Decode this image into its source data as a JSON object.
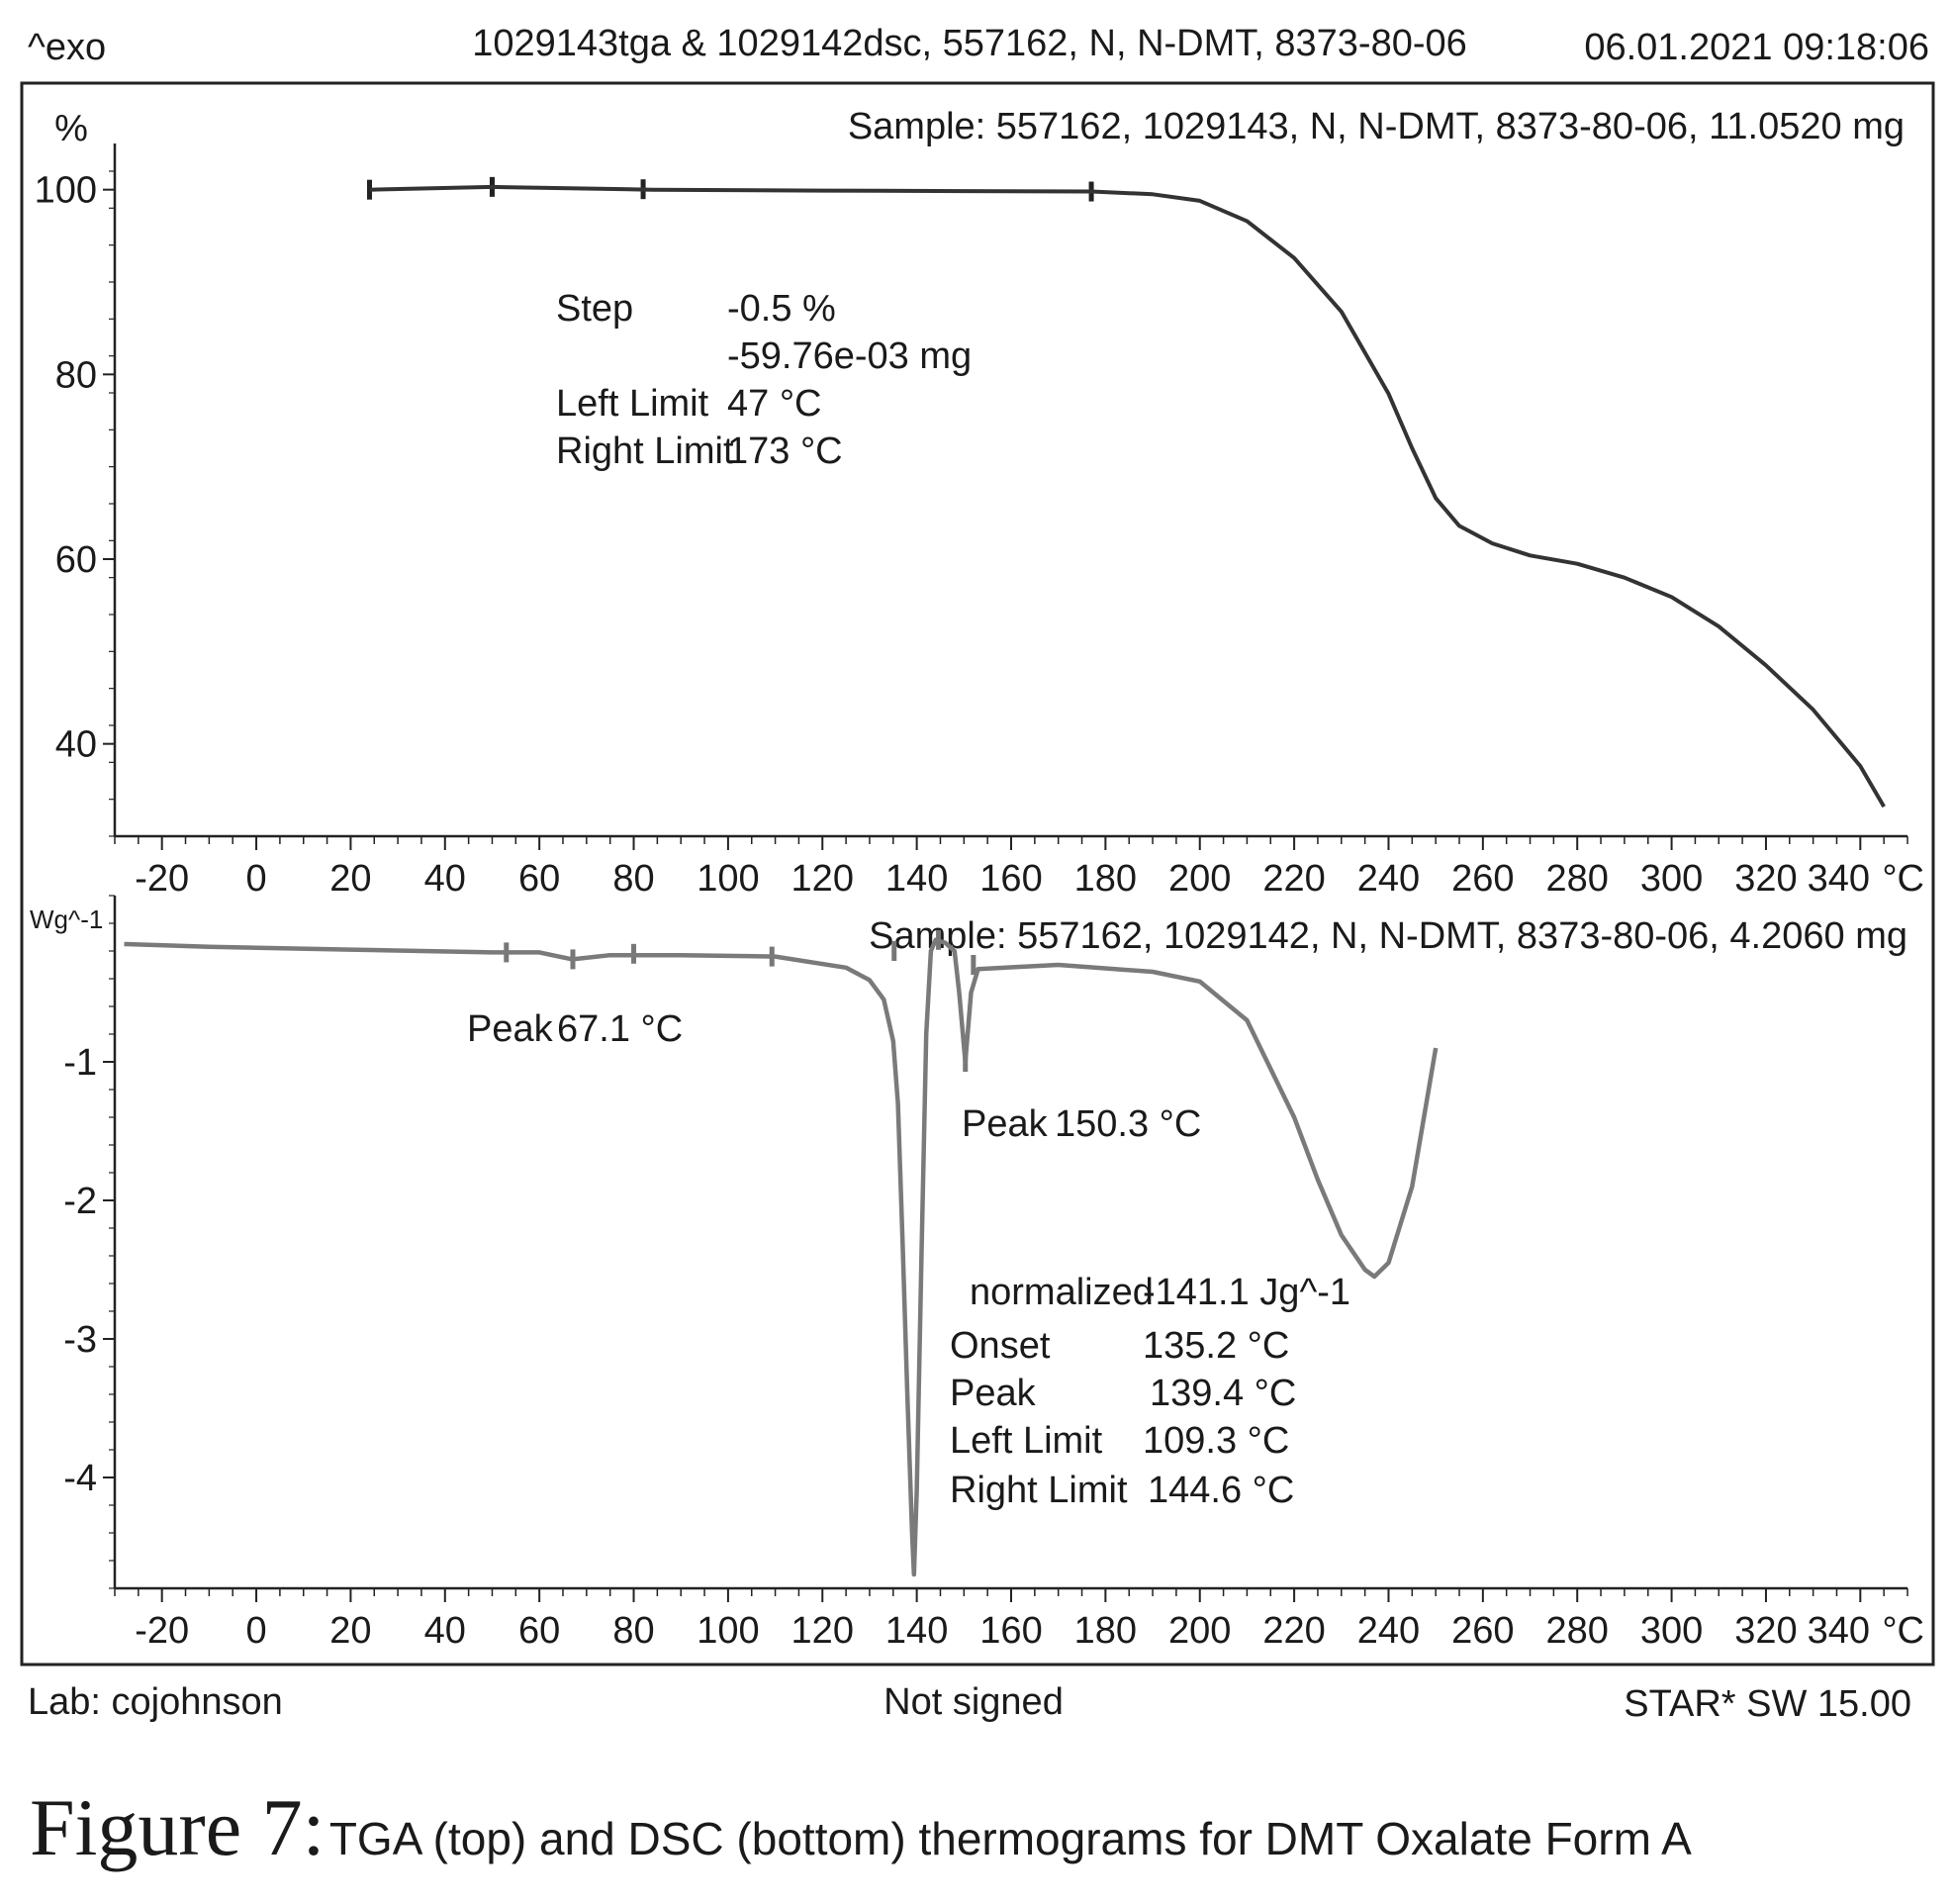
{
  "header": {
    "exo_label": "^exo",
    "title": "1029143tga & 1029142dsc, 557162, N, N-DMT, 8373-80-06",
    "datetime": "06.01.2021 09:18:06"
  },
  "footer": {
    "lab": "Lab: cojohnson",
    "signed": "Not signed",
    "software": "STAR* SW 15.00"
  },
  "caption": {
    "figure": "Figure 7:",
    "text": "TGA (top) and DSC (bottom) thermograms for DMT Oxalate Form A"
  },
  "chart_data": [
    {
      "type": "line",
      "name": "TGA",
      "ylabel": "%",
      "xunit": "°C",
      "xlim": [
        -30,
        350
      ],
      "ylim": [
        30,
        105
      ],
      "xticks": [
        -20,
        0,
        20,
        40,
        60,
        80,
        100,
        120,
        140,
        160,
        180,
        200,
        220,
        240,
        260,
        280,
        300,
        320,
        340
      ],
      "yticks": [
        40,
        60,
        80,
        100
      ],
      "sample": "Sample: 557162, 1029143, N, N-DMT, 8373-80-06, 11.0520 mg",
      "series": [
        {
          "color": "#333333",
          "x": [
            24,
            50,
            84,
            120,
            150,
            177,
            190,
            200,
            210,
            220,
            230,
            240,
            245,
            250,
            255,
            262,
            270,
            280,
            290,
            300,
            310,
            320,
            330,
            340,
            345
          ],
          "y": [
            100.0,
            100.3,
            100.0,
            99.9,
            99.85,
            99.8,
            99.5,
            98.8,
            96.6,
            92.6,
            86.8,
            77.9,
            72.0,
            66.6,
            63.6,
            61.7,
            60.4,
            59.5,
            58.0,
            55.9,
            52.7,
            48.5,
            43.7,
            37.6,
            33.2
          ]
        }
      ],
      "annotations": [
        {
          "lines": [
            {
              "label": "Step",
              "value": "-0.5 %"
            },
            {
              "label": "",
              "value": "-59.76e-03 mg"
            },
            {
              "label": "Left Limit",
              "value": "47 °C"
            },
            {
              "label": "Right Limit",
              "value": "173 °C"
            }
          ]
        }
      ]
    },
    {
      "type": "line",
      "name": "DSC",
      "ylabel": "Wg^-1",
      "xunit": "°C",
      "xlim": [
        -30,
        350
      ],
      "ylim": [
        -4.8,
        0.2
      ],
      "xticks": [
        -20,
        0,
        20,
        40,
        60,
        80,
        100,
        120,
        140,
        160,
        180,
        200,
        220,
        240,
        260,
        280,
        300,
        320,
        340
      ],
      "yticks": [
        -1,
        -2,
        -3,
        -4
      ],
      "sample": "Sample: 557162, 1029142, N, N-DMT, 8373-80-06, 4.2060 mg",
      "series": [
        {
          "color": "#7a7a7a",
          "x": [
            -28,
            -10,
            20,
            50,
            60,
            67,
            75,
            90,
            110,
            125,
            130,
            133,
            135,
            136,
            137,
            138,
            139,
            139.4,
            140,
            141,
            142,
            143,
            144,
            146,
            148,
            149,
            150.3,
            151.5,
            153,
            170,
            190,
            200,
            210,
            220,
            225,
            230,
            235,
            237,
            240,
            245,
            250
          ],
          "y": [
            -0.15,
            -0.17,
            -0.19,
            -0.21,
            -0.21,
            -0.26,
            -0.23,
            -0.23,
            -0.24,
            -0.32,
            -0.41,
            -0.55,
            -0.85,
            -1.3,
            -2.3,
            -3.4,
            -4.4,
            -4.7,
            -4.1,
            -2.4,
            -0.8,
            -0.2,
            -0.12,
            -0.14,
            -0.2,
            -0.5,
            -1.0,
            -0.5,
            -0.33,
            -0.3,
            -0.35,
            -0.42,
            -0.7,
            -1.4,
            -1.85,
            -2.25,
            -2.5,
            -2.55,
            -2.45,
            -1.9,
            -0.9
          ]
        }
      ],
      "annotations": [
        {
          "lines": [
            {
              "label": "Peak",
              "value": "67.1 °C"
            }
          ]
        },
        {
          "lines": [
            {
              "label": "Peak",
              "value": "150.3 °C"
            }
          ]
        },
        {
          "lines": [
            {
              "label": "normalized",
              "value": "-141.1 Jg^-1"
            },
            {
              "label": "Onset",
              "value": "135.2 °C"
            },
            {
              "label": "Peak",
              "value": "139.4 °C"
            },
            {
              "label": "Left Limit",
              "value": "109.3 °C"
            },
            {
              "label": "Right Limit",
              "value": "144.6 °C"
            }
          ]
        }
      ]
    }
  ]
}
